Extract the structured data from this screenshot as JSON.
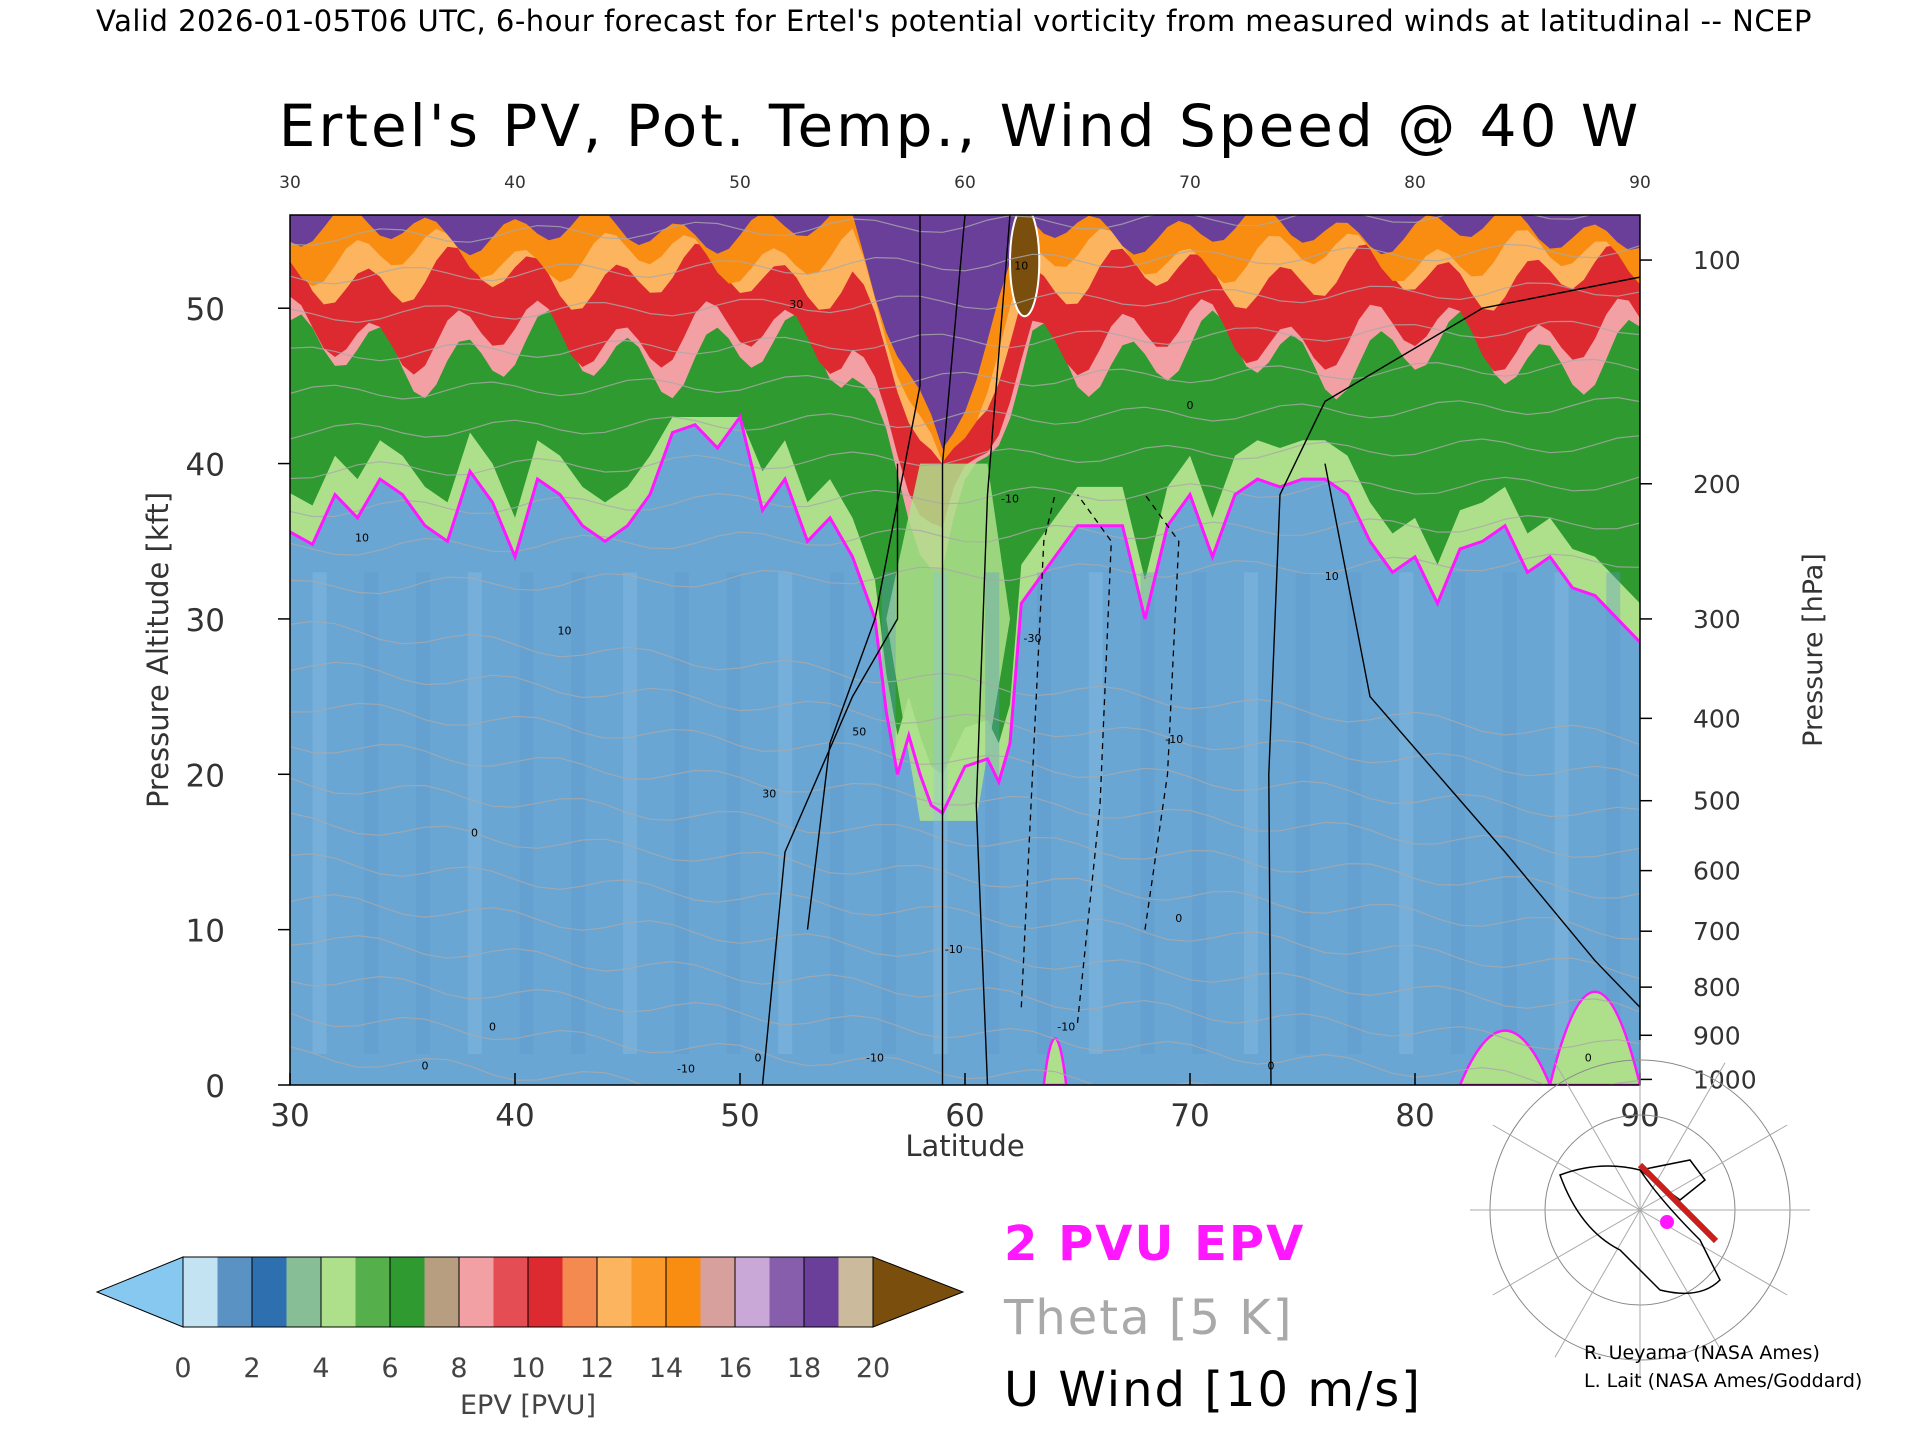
{
  "header": {
    "valid_line": "Valid 2026-01-05T06 UTC, 6-hour forecast for Ertel's potential vorticity from measured winds at latitudinal -- NCEP",
    "title": "Ertel's PV, Pot. Temp., Wind Speed @ 40 W"
  },
  "chart_data": {
    "type": "heatmap",
    "title": "Ertel's PV, Pot. Temp., Wind Speed @ 40 W",
    "xlabel": "Latitude",
    "ylabel_left": "Pressure Altitude [kft]",
    "ylabel_right": "Pressure [hPa]",
    "xlim": [
      30,
      90
    ],
    "ylim_kft": [
      0,
      56
    ],
    "x_ticks": [
      30,
      40,
      50,
      60,
      70,
      80,
      90
    ],
    "y_ticks_kft": [
      0,
      10,
      20,
      30,
      40,
      50
    ],
    "pressure_ticks": [
      {
        "hPa": "1000",
        "kft": 0.36
      },
      {
        "hPa": "900",
        "kft": 3.2
      },
      {
        "hPa": "800",
        "kft": 6.3
      },
      {
        "hPa": "700",
        "kft": 9.9
      },
      {
        "hPa": "600",
        "kft": 13.8
      },
      {
        "hPa": "500",
        "kft": 18.3
      },
      {
        "hPa": "400",
        "kft": 23.6
      },
      {
        "hPa": "300",
        "kft": 30.0
      },
      {
        "hPa": "200",
        "kft": 38.7
      },
      {
        "hPa": "100",
        "kft": 53.1
      }
    ],
    "colorbar": {
      "label": "EPV [PVU]",
      "ticks": [
        "0",
        "2",
        "4",
        "6",
        "8",
        "10",
        "12",
        "14",
        "16",
        "18",
        "20"
      ],
      "colors": [
        "#c3e3f2",
        "#2e6fb0",
        "#aee08c",
        "#2f9a2f",
        "#f2a0a4",
        "#dd2a30",
        "#fdb45e",
        "#f98d12",
        "#c9a8d8",
        "#6a3f9a",
        "#f6f09c"
      ],
      "under_color": "#86c8ef",
      "over_color": "#7a4f0e"
    },
    "overlays": [
      {
        "name": "2 PVU EPV",
        "color": "#ff17ff"
      },
      {
        "name": "Theta [5 K]",
        "color": "#a9a9a9"
      },
      {
        "name": "U Wind [10 m/s]",
        "color": "#000000"
      }
    ],
    "pv2_tropopause_kft": [
      [
        30,
        35.6
      ],
      [
        31,
        34.8
      ],
      [
        32,
        38.0
      ],
      [
        33,
        36.5
      ],
      [
        34,
        39.0
      ],
      [
        35,
        38.0
      ],
      [
        36,
        36.0
      ],
      [
        37,
        35.0
      ],
      [
        38,
        39.5
      ],
      [
        39,
        37.5
      ],
      [
        40,
        34.0
      ],
      [
        41,
        39.0
      ],
      [
        42,
        38.0
      ],
      [
        43,
        36.0
      ],
      [
        44,
        35.0
      ],
      [
        45,
        36.0
      ],
      [
        46,
        38.0
      ],
      [
        47,
        42.0
      ],
      [
        48,
        42.5
      ],
      [
        49,
        41.0
      ],
      [
        50,
        43.0
      ],
      [
        51,
        37.0
      ],
      [
        52,
        39.0
      ],
      [
        53,
        35.0
      ],
      [
        54,
        36.5
      ],
      [
        55,
        34.0
      ],
      [
        56,
        30.0
      ],
      [
        56.5,
        24.0
      ],
      [
        57,
        20.0
      ],
      [
        57.5,
        22.5
      ],
      [
        58,
        20.0
      ],
      [
        58.5,
        18.0
      ],
      [
        59,
        17.5
      ],
      [
        60,
        20.5
      ],
      [
        61,
        21.0
      ],
      [
        61.5,
        19.5
      ],
      [
        62,
        22.0
      ],
      [
        62.5,
        31.0
      ],
      [
        63,
        32.0
      ],
      [
        64,
        34.0
      ],
      [
        65,
        36.0
      ],
      [
        66,
        36.0
      ],
      [
        67,
        36.0
      ],
      [
        68,
        30.0
      ],
      [
        69,
        36.0
      ],
      [
        70,
        38.0
      ],
      [
        71,
        34.0
      ],
      [
        72,
        38.0
      ],
      [
        73,
        39.0
      ],
      [
        74,
        38.5
      ],
      [
        75,
        39.0
      ],
      [
        76,
        39.0
      ],
      [
        77,
        38.0
      ],
      [
        78,
        35.0
      ],
      [
        79,
        33.0
      ],
      [
        80,
        34.0
      ],
      [
        81,
        31.0
      ],
      [
        82,
        34.5
      ],
      [
        83,
        35.0
      ],
      [
        84,
        36.0
      ],
      [
        85,
        33.0
      ],
      [
        86,
        34.0
      ],
      [
        87,
        32.0
      ],
      [
        88,
        31.5
      ],
      [
        89,
        30.0
      ],
      [
        90,
        28.5
      ]
    ],
    "surface_pv2": [
      {
        "range": [
          63.5,
          64.5
        ],
        "top_kft": 3.0
      },
      {
        "range": [
          82,
          86
        ],
        "top_kft": 3.5
      },
      {
        "range": [
          86,
          90
        ],
        "top_kft": 6.0
      }
    ],
    "upper_pv_bands_kft": {
      "green_4pvu": 43.0,
      "red_8pvu": 47.0,
      "orange_12pvu": 52.0,
      "purple_14pvu": 55.0
    },
    "trough_latitude": 59,
    "brown_over20_region": {
      "lat": [
        62,
        63.3
      ],
      "kft": [
        50,
        56
      ]
    },
    "u_wind_contour_labels": [
      {
        "text": "10",
        "lat": 33.2,
        "kft": 35
      },
      {
        "text": "0",
        "lat": 38.2,
        "kft": 16
      },
      {
        "text": "10",
        "lat": 42.2,
        "kft": 29
      },
      {
        "text": "0",
        "lat": 36.0,
        "kft": 1
      },
      {
        "text": "0",
        "lat": 39.0,
        "kft": 3.5
      },
      {
        "text": "-10",
        "lat": 47.6,
        "kft": 0.8
      },
      {
        "text": "0",
        "lat": 50.8,
        "kft": 1.5
      },
      {
        "text": "-10",
        "lat": 56.0,
        "kft": 1.5
      },
      {
        "text": "30",
        "lat": 51.3,
        "kft": 18.5
      },
      {
        "text": "50",
        "lat": 55.3,
        "kft": 22.5
      },
      {
        "text": "30",
        "lat": 52.5,
        "kft": 50
      },
      {
        "text": "-10",
        "lat": 59.5,
        "kft": 8.5
      },
      {
        "text": "10",
        "lat": 62.5,
        "kft": 52.5
      },
      {
        "text": "-10",
        "lat": 62.0,
        "kft": 37.5
      },
      {
        "text": "-30",
        "lat": 63.0,
        "kft": 28.5
      },
      {
        "text": "-10",
        "lat": 69.3,
        "kft": 22
      },
      {
        "text": "-10",
        "lat": 64.5,
        "kft": 3.5
      },
      {
        "text": "0",
        "lat": 69.5,
        "kft": 10.5
      },
      {
        "text": "0",
        "lat": 70.0,
        "kft": 43.5
      },
      {
        "text": "10",
        "lat": 76.3,
        "kft": 32.5
      },
      {
        "text": "0",
        "lat": 73.6,
        "kft": 1
      },
      {
        "text": "0",
        "lat": 87.7,
        "kft": 1.5
      }
    ]
  },
  "legend": {
    "pv_label": "2 PVU EPV",
    "theta_label": "Theta [5 K]",
    "wind_label": "U Wind [10 m/s]"
  },
  "credits": {
    "line1": "R. Ueyama (NASA Ames)",
    "line2": "L. Lait (NASA Ames/Goddard)"
  },
  "map": {
    "marker_color": "#ff17ff",
    "track_color": "#c8201c"
  }
}
